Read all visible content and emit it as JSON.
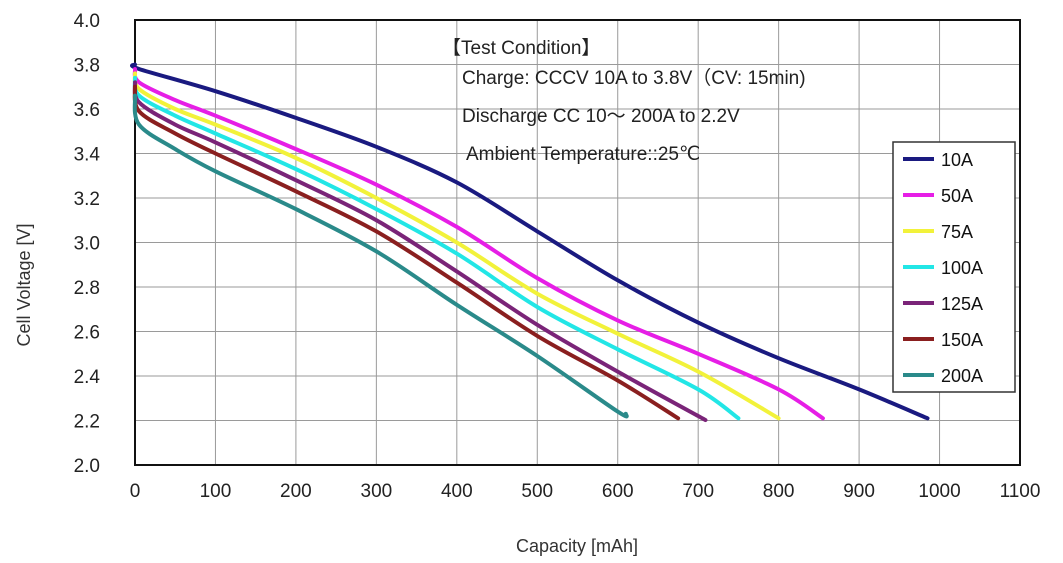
{
  "chart_data": {
    "type": "line",
    "xlabel": "Capacity [mAh]",
    "ylabel": "Cell Voltage [V]",
    "xlim": [
      0,
      1100
    ],
    "ylim": [
      2.0,
      4.0
    ],
    "x_ticks": [
      "0",
      "100",
      "200",
      "300",
      "400",
      "500",
      "600",
      "700",
      "800",
      "900",
      "1000",
      "1100"
    ],
    "y_ticks": [
      "2.0",
      "2.2",
      "2.4",
      "2.6",
      "2.8",
      "3.0",
      "3.2",
      "3.4",
      "3.6",
      "3.8",
      "4.0"
    ],
    "grid": true,
    "legend_position": "right",
    "annotations": [
      "【Test Condition】",
      "Charge: CCCV 10A to 3.8V（CV: 15min)",
      "Discharge CC 10～ 200A to 2.2V",
      "Ambient Temperature::25℃"
    ],
    "series": [
      {
        "name": "10A",
        "color": "#1a1a80",
        "x": [
          0,
          5,
          100,
          200,
          300,
          400,
          500,
          600,
          700,
          800,
          900,
          985
        ],
        "y": [
          3.8,
          3.78,
          3.68,
          3.56,
          3.43,
          3.27,
          3.05,
          2.83,
          2.64,
          2.48,
          2.34,
          2.21
        ]
      },
      {
        "name": "50A",
        "color": "#e61ee6",
        "x": [
          0,
          5,
          50,
          100,
          200,
          300,
          400,
          500,
          600,
          700,
          800,
          855
        ],
        "y": [
          3.78,
          3.72,
          3.64,
          3.57,
          3.42,
          3.26,
          3.07,
          2.84,
          2.65,
          2.5,
          2.34,
          2.21
        ]
      },
      {
        "name": "75A",
        "color": "#f2f23a",
        "x": [
          0,
          5,
          50,
          100,
          200,
          300,
          400,
          500,
          600,
          700,
          800
        ],
        "y": [
          3.76,
          3.69,
          3.6,
          3.53,
          3.38,
          3.2,
          3.0,
          2.77,
          2.59,
          2.42,
          2.21
        ]
      },
      {
        "name": "100A",
        "color": "#22e6e6",
        "x": [
          0,
          5,
          50,
          100,
          200,
          300,
          400,
          500,
          600,
          700,
          750
        ],
        "y": [
          3.74,
          3.66,
          3.57,
          3.49,
          3.33,
          3.15,
          2.95,
          2.71,
          2.52,
          2.34,
          2.21
        ]
      },
      {
        "name": "125A",
        "color": "#7a2478",
        "x": [
          0,
          5,
          50,
          100,
          200,
          300,
          400,
          500,
          600,
          700,
          705
        ],
        "y": [
          3.72,
          3.63,
          3.53,
          3.45,
          3.28,
          3.1,
          2.87,
          2.63,
          2.42,
          2.22,
          2.21
        ]
      },
      {
        "name": "150A",
        "color": "#8a1f1f",
        "x": [
          0,
          5,
          50,
          100,
          200,
          300,
          400,
          500,
          600,
          675
        ],
        "y": [
          3.7,
          3.59,
          3.49,
          3.4,
          3.23,
          3.05,
          2.82,
          2.58,
          2.38,
          2.21
        ]
      },
      {
        "name": "200A",
        "color": "#2a8a8a",
        "x": [
          0,
          5,
          50,
          100,
          200,
          300,
          400,
          500,
          600,
          610
        ],
        "y": [
          3.66,
          3.53,
          3.42,
          3.32,
          3.15,
          2.96,
          2.72,
          2.49,
          2.24,
          2.23
        ]
      }
    ]
  }
}
